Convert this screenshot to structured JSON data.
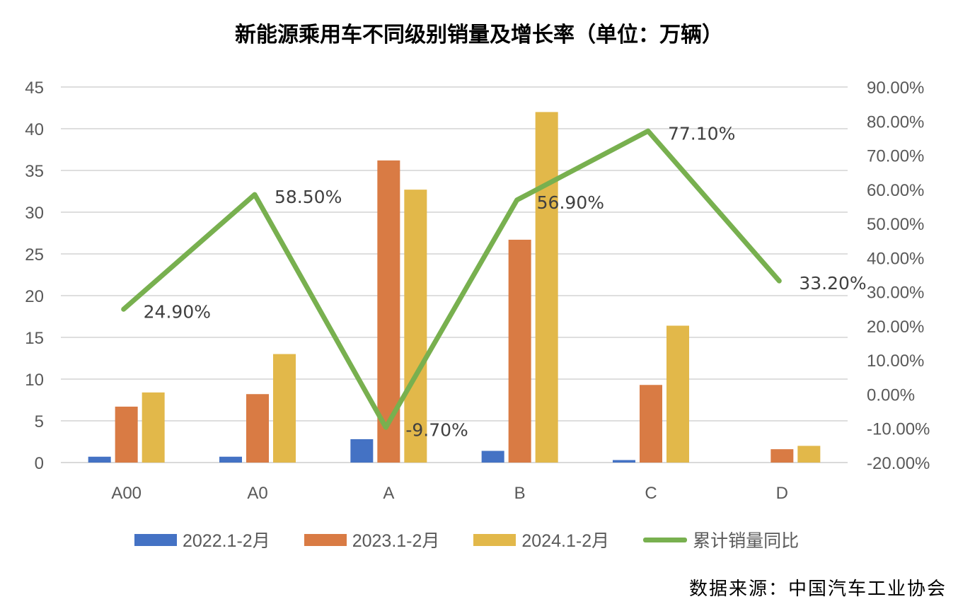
{
  "title": "新能源乘用车不同级别销量及增长率（单位：万辆）",
  "source": "数据来源：中国汽车工业协会",
  "chart_data": {
    "type": "bar",
    "categories": [
      "A00",
      "A0",
      "A",
      "B",
      "C",
      "D"
    ],
    "series": [
      {
        "name": "2022.1-2月",
        "type": "bar",
        "axis": "left",
        "color": "#4472C4",
        "values": [
          0.7,
          0.7,
          2.8,
          1.4,
          0.3,
          0.0
        ]
      },
      {
        "name": "2023.1-2月",
        "type": "bar",
        "axis": "left",
        "color": "#D97B44",
        "values": [
          6.7,
          8.2,
          36.2,
          26.7,
          9.3,
          1.6
        ]
      },
      {
        "name": "2024.1-2月",
        "type": "bar",
        "axis": "left",
        "color": "#E2B84A",
        "values": [
          8.4,
          13.0,
          32.7,
          42.0,
          16.4,
          2.0
        ]
      },
      {
        "name": "累计销量同比",
        "type": "line",
        "axis": "right",
        "color": "#78B04F",
        "values": [
          24.9,
          58.5,
          -9.7,
          56.9,
          77.1,
          33.2
        ]
      }
    ],
    "line_labels": [
      "24.90%",
      "58.50%",
      "-9.70%",
      "56.90%",
      "77.10%",
      "33.20%"
    ],
    "y_left": {
      "min": 0,
      "max": 45,
      "step": 5,
      "ticks": [
        "0",
        "5",
        "10",
        "15",
        "20",
        "25",
        "30",
        "35",
        "40",
        "45"
      ]
    },
    "y_right": {
      "min": -20,
      "max": 90,
      "step": 10,
      "ticks": [
        "-20.00%",
        "-10.00%",
        "0.00%",
        "10.00%",
        "20.00%",
        "30.00%",
        "40.00%",
        "50.00%",
        "60.00%",
        "70.00%",
        "80.00%",
        "90.00%"
      ]
    },
    "grid": true,
    "legend_position": "bottom"
  }
}
